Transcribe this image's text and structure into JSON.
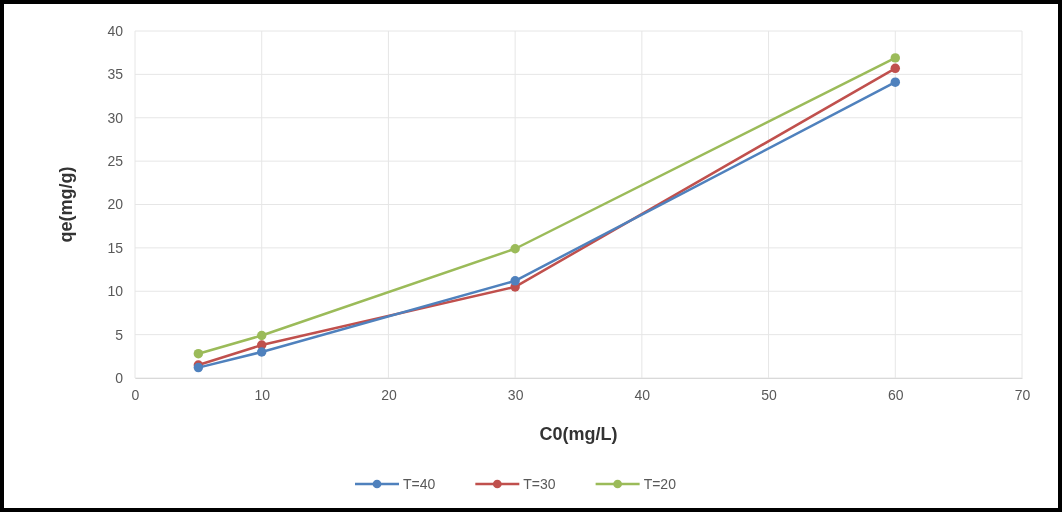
{
  "chart_data": {
    "type": "line",
    "xlabel": "C0(mg/L)",
    "ylabel": "qe(mg/g)",
    "x": [
      5,
      10,
      30,
      60
    ],
    "series": [
      {
        "name": "T=40",
        "color": "#4f81bd",
        "values": [
          1.2,
          3.0,
          11.2,
          34.1
        ]
      },
      {
        "name": "T=30",
        "color": "#c0504d",
        "values": [
          1.5,
          3.8,
          10.5,
          35.7
        ]
      },
      {
        "name": "T=20",
        "color": "#9bbb59",
        "values": [
          2.8,
          4.9,
          14.9,
          36.9
        ]
      }
    ],
    "xlim": [
      0,
      70
    ],
    "xticks": [
      0,
      10,
      20,
      30,
      40,
      50,
      60,
      70
    ],
    "ylim": [
      0,
      40
    ],
    "yticks": [
      0,
      5,
      10,
      15,
      20,
      25,
      30,
      35,
      40
    ],
    "grid": true,
    "legend": "bottom",
    "marker": "circle",
    "line_style": "solid"
  }
}
